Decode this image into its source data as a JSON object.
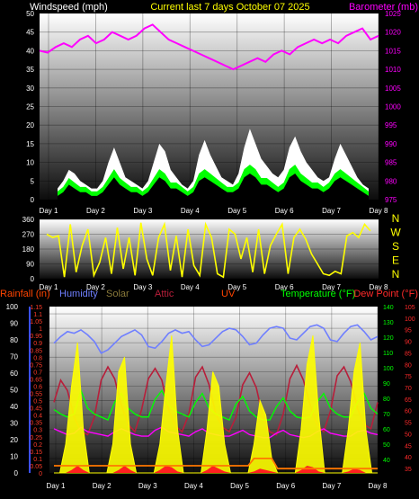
{
  "colors": {
    "background": "#000000",
    "wind_avg": "#000000",
    "wind_gust": "#ffffff",
    "wind_speed": "#00ff00",
    "barometer": "#ff00ff",
    "direction": "#ffff00",
    "rainfall": "#ff7700",
    "humidity": "#6f7fff",
    "solar": "#ffff00",
    "uv": "#ff2020",
    "temperature": "#00ff00",
    "dew_point": "#ff00ff",
    "attic": "#b81e3a",
    "humidity_axis": "#3a50ff",
    "temp_axis": "#00ff00",
    "dew_axis": "#ff2a2a"
  },
  "chart_data": [
    {
      "type": "area",
      "title": "Current last 7 days October 07 2025",
      "left_axis_label": "Windspeed (mph)",
      "right_axis_label": "Barometer (mb)",
      "x_ticks": [
        "Day 1",
        "Day 2",
        "Day 3",
        "Day 4",
        "Day 5",
        "Day 6",
        "Day 7",
        "Day 8"
      ],
      "left_ticks": [
        "0",
        "5",
        "10",
        "15",
        "20",
        "25",
        "30",
        "35",
        "40",
        "45",
        "50"
      ],
      "right_ticks": [
        "975",
        "980",
        "985",
        "990",
        "995",
        "1000",
        "1005",
        "1010",
        "1015",
        "1020",
        "1025"
      ],
      "ylim_left": [
        0,
        50
      ],
      "ylim_right": [
        975,
        1025
      ],
      "series": [
        {
          "role": "gust",
          "values": [
            3,
            5,
            8,
            7,
            5,
            4,
            3,
            3,
            5,
            10,
            14,
            10,
            6,
            5,
            4,
            3,
            5,
            10,
            15,
            13,
            8,
            6,
            4,
            3,
            5,
            12,
            16,
            12,
            9,
            6,
            5,
            4,
            7,
            14,
            19,
            15,
            11,
            9,
            7,
            6,
            8,
            14,
            17,
            13,
            10,
            8,
            6,
            5,
            6,
            11,
            15,
            12,
            9,
            6,
            4,
            3
          ]
        },
        {
          "role": "average",
          "values": [
            1,
            2,
            4,
            3,
            2,
            2,
            1,
            1,
            2,
            4,
            6,
            4,
            3,
            2,
            2,
            1,
            2,
            4,
            6,
            5,
            3,
            3,
            2,
            1,
            2,
            5,
            6,
            5,
            4,
            3,
            2,
            2,
            3,
            6,
            7,
            6,
            4,
            4,
            3,
            2,
            3,
            6,
            7,
            5,
            4,
            3,
            3,
            2,
            3,
            5,
            6,
            5,
            4,
            3,
            2,
            1
          ]
        },
        {
          "role": "barometer",
          "values": [
            1015,
            1014.5,
            1016,
            1017,
            1016,
            1018,
            1019,
            1017,
            1018,
            1020,
            1019,
            1018,
            1019,
            1021,
            1022,
            1020,
            1018,
            1017,
            1016,
            1015,
            1014,
            1013,
            1012,
            1011,
            1010,
            1011,
            1012,
            1013,
            1012,
            1014,
            1015,
            1014,
            1016,
            1017,
            1018,
            1017,
            1018,
            1017,
            1019,
            1020,
            1021,
            1018,
            1019
          ]
        }
      ]
    },
    {
      "type": "scatter",
      "left_ticks": [
        "0",
        "90",
        "180",
        "270",
        "360"
      ],
      "ylim": [
        0,
        360
      ],
      "right_labels": [
        "N",
        "W",
        "S",
        "E",
        "N"
      ],
      "x_ticks": [
        "Day 1",
        "Day 2",
        "Day 3",
        "Day 4",
        "Day 5",
        "Day 6",
        "Day 7",
        "Day 8"
      ],
      "series": [
        {
          "role": "direction",
          "values": [
            270,
            250,
            260,
            10,
            330,
            40,
            200,
            300,
            20,
            100,
            250,
            30,
            310,
            60,
            250,
            20,
            340,
            120,
            20,
            250,
            330,
            50,
            260,
            10,
            300,
            80,
            20,
            330,
            250,
            30,
            10,
            300,
            270,
            120,
            250,
            40,
            300,
            30,
            200,
            270,
            330,
            30,
            250,
            300,
            240,
            150,
            90,
            30,
            20,
            45,
            30,
            260,
            280,
            250,
            330,
            290
          ]
        }
      ]
    },
    {
      "type": "line",
      "legend": [
        "Rainfall (in)",
        "Humidity",
        "Solar",
        "Attic",
        "UV",
        "Temperature (°F)",
        "Dew Point (°F)"
      ],
      "x_ticks": [
        "Day 1",
        "Day 2",
        "Day 3",
        "Day 4",
        "Day 5",
        "Day 6",
        "Day 7",
        "Day 8"
      ],
      "outer_left_ticks": [
        "0",
        "10",
        "20",
        "30",
        "40",
        "50",
        "60",
        "70",
        "80",
        "90",
        "100"
      ],
      "inner_left_ticks": [
        "0",
        "0.05",
        "0.1",
        "0.15",
        "0.2",
        "0.25",
        "0.3",
        "0.35",
        "0.4",
        "0.45",
        "0.5",
        "0.55",
        "0.6",
        "0.65",
        "0.7",
        "0.75",
        "0.8",
        "0.85",
        "0.9",
        "0.95",
        "1",
        "1.05",
        "1.1",
        "1.15"
      ],
      "right_temp_ticks": [
        "40",
        "50",
        "60",
        "70",
        "80",
        "90",
        "100",
        "110",
        "120",
        "130",
        "140"
      ],
      "right_dew_ticks": [
        "35",
        "40",
        "45",
        "50",
        "55",
        "60",
        "65",
        "70",
        "75",
        "80",
        "85",
        "90",
        "95",
        "100",
        "105"
      ],
      "ylim_rain": [
        0,
        1.15
      ],
      "ylim_humidity": [
        0,
        100
      ],
      "ylim_temp": [
        32,
        145
      ],
      "series": [
        {
          "role": "humidity",
          "values": [
            78,
            82,
            85,
            84,
            86,
            83,
            79,
            72,
            74,
            78,
            82,
            84,
            86,
            83,
            76,
            75,
            79,
            84,
            86,
            84,
            85,
            80,
            76,
            77,
            81,
            85,
            87,
            86,
            82,
            77,
            78,
            83,
            87,
            88,
            87,
            81,
            80,
            84,
            88,
            89,
            87,
            80,
            79,
            84,
            88,
            89,
            85,
            80,
            82
          ]
        },
        {
          "role": "temperature",
          "values": [
            75,
            72,
            70,
            72,
            88,
            76,
            72,
            70,
            68,
            80,
            86,
            76,
            72,
            70,
            70,
            82,
            88,
            78,
            74,
            72,
            70,
            80,
            86,
            76,
            72,
            70,
            68,
            79,
            84,
            74,
            70,
            68,
            68,
            77,
            83,
            74,
            70,
            69,
            70,
            80,
            86,
            76,
            72,
            70,
            70,
            80,
            86,
            76,
            72
          ]
        },
        {
          "role": "dew_point",
          "values": [
            62,
            60,
            58,
            59,
            63,
            60,
            59,
            58,
            57,
            60,
            62,
            60,
            58,
            57,
            57,
            61,
            63,
            60,
            59,
            58,
            57,
            60,
            62,
            59,
            58,
            57,
            57,
            59,
            61,
            58,
            57,
            56,
            56,
            59,
            61,
            58,
            57,
            56,
            57,
            60,
            62,
            59,
            58,
            57,
            57,
            60,
            61,
            59,
            58
          ]
        },
        {
          "role": "attic",
          "values": [
            80,
            95,
            88,
            70,
            60,
            58,
            70,
            95,
            104,
            96,
            78,
            65,
            60,
            75,
            96,
            103,
            95,
            75,
            64,
            60,
            72,
            97,
            104,
            92,
            72,
            63,
            60,
            70,
            92,
            100,
            90,
            70,
            60,
            58,
            72,
            96,
            105,
            95,
            78,
            65,
            60,
            74,
            98,
            104,
            94,
            76,
            65,
            62,
            80
          ]
        },
        {
          "role": "solar",
          "values": [
            0,
            0,
            0.2,
            0.6,
            0.9,
            0.3,
            0,
            0,
            0,
            0,
            0.2,
            0.7,
            0.8,
            0.2,
            0,
            0,
            0,
            0,
            0.2,
            0.6,
            0.95,
            0.3,
            0,
            0,
            0,
            0,
            0.3,
            0.7,
            0.6,
            0.2,
            0,
            0,
            0,
            0,
            0.2,
            0.5,
            0.4,
            0.1,
            0,
            0,
            0,
            0,
            0.3,
            0.75,
            0.95,
            0.4,
            0,
            0,
            0,
            0,
            0.3,
            0.7,
            0.9,
            0.3,
            0,
            0
          ]
        },
        {
          "role": "uv",
          "values": [
            0,
            0,
            0,
            0.02,
            0.05,
            0.02,
            0,
            0,
            0,
            0,
            0,
            0.02,
            0.05,
            0.02,
            0,
            0,
            0,
            0,
            0.02,
            0.05,
            0.04,
            0.01,
            0,
            0,
            0,
            0,
            0.02,
            0.05,
            0.03,
            0.01,
            0,
            0,
            0,
            0,
            0.01,
            0.03,
            0.02,
            0.01,
            0,
            0,
            0,
            0,
            0.02,
            0.05,
            0.04,
            0.01,
            0,
            0,
            0,
            0,
            0.01,
            0.03,
            0.02,
            0,
            0,
            0
          ]
        },
        {
          "role": "rainfall",
          "values": [
            0.05,
            0.05,
            0.05,
            0.05,
            0.05,
            0.05,
            0.05,
            0.05,
            0.05,
            0.05,
            0.05,
            0.05,
            0.05,
            0.05,
            0.05,
            0.05,
            0.05,
            0.05,
            0.05,
            0.05,
            0.05,
            0.05,
            0.05,
            0.05,
            0.05,
            0.05,
            0.05,
            0.05,
            0.05,
            0.05,
            0.05,
            0.05,
            0.05,
            0.05,
            0.1,
            0.1,
            0.1,
            0.1,
            0.03,
            0.03,
            0.03,
            0.03,
            0.03,
            0.03,
            0.03,
            0.03,
            0.03,
            0.03,
            0.03,
            0.03,
            0.03,
            0.03,
            0.03,
            0.03,
            0.03,
            0.03
          ]
        }
      ]
    }
  ]
}
